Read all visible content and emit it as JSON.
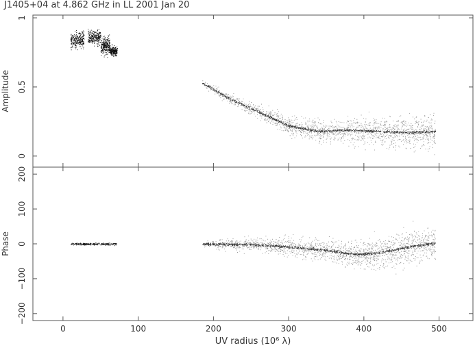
{
  "chart_data": [
    {
      "type": "scatter",
      "title": "J1405+04 at 4.862 GHz in LL  2001 Jan 20",
      "xlabel": "UV radius  (10⁶ λ)",
      "ylabel": "Amplitude",
      "xlim": [
        -40,
        545
      ],
      "ylim": [
        -0.08,
        1.02
      ],
      "x_ticks": [
        0,
        100,
        200,
        300,
        400,
        500
      ],
      "y_ticks": [
        0,
        0.5,
        1
      ],
      "y_tick_labels": [
        "0",
        "0.5",
        "1"
      ],
      "grid": false,
      "clusters": [
        {
          "x_range": [
            10,
            28
          ],
          "y_center": 0.84,
          "y_spread": 0.05
        },
        {
          "x_range": [
            33,
            50
          ],
          "y_center": 0.86,
          "y_spread": 0.05
        },
        {
          "x_range": [
            50,
            62
          ],
          "y_center": 0.8,
          "y_spread": 0.06
        },
        {
          "x_range": [
            62,
            72
          ],
          "y_center": 0.76,
          "y_spread": 0.03
        }
      ],
      "trend": [
        {
          "x": 185,
          "y": 0.53
        },
        {
          "x": 220,
          "y": 0.42
        },
        {
          "x": 260,
          "y": 0.32
        },
        {
          "x": 300,
          "y": 0.22
        },
        {
          "x": 340,
          "y": 0.18
        },
        {
          "x": 380,
          "y": 0.19
        },
        {
          "x": 420,
          "y": 0.18
        },
        {
          "x": 460,
          "y": 0.17
        },
        {
          "x": 495,
          "y": 0.18
        }
      ]
    },
    {
      "type": "scatter",
      "xlabel": "UV radius  (10⁶ λ)",
      "ylabel": "Phase",
      "xlim": [
        -40,
        545
      ],
      "ylim": [
        -220,
        220
      ],
      "x_ticks": [
        0,
        100,
        200,
        300,
        400,
        500
      ],
      "x_tick_labels": [
        "0",
        "100",
        "200",
        "300",
        "400",
        "500"
      ],
      "y_ticks": [
        -200,
        -100,
        0,
        100,
        200
      ],
      "y_tick_labels": [
        "−200",
        "−100",
        "0",
        "100",
        "200"
      ],
      "grid": false,
      "clusters": [
        {
          "x_range": [
            10,
            72
          ],
          "y_center": 0,
          "y_spread": 3
        }
      ],
      "trend": [
        {
          "x": 185,
          "y": 0
        },
        {
          "x": 250,
          "y": -2
        },
        {
          "x": 300,
          "y": -8
        },
        {
          "x": 350,
          "y": -18
        },
        {
          "x": 390,
          "y": -30
        },
        {
          "x": 420,
          "y": -25
        },
        {
          "x": 460,
          "y": -8
        },
        {
          "x": 495,
          "y": 3
        }
      ]
    }
  ]
}
